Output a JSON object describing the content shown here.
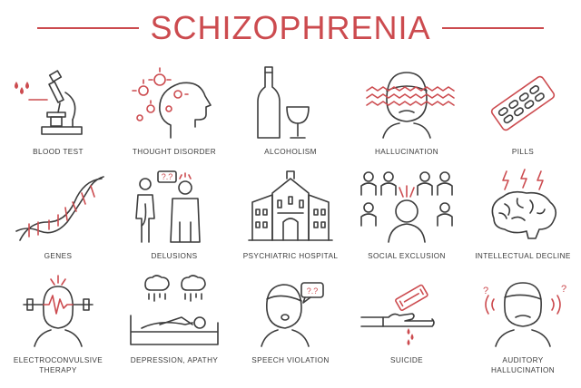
{
  "title": "SCHIZOPHRENIA",
  "colors": {
    "accent": "#cc4b4f",
    "line": "#3c3c3c",
    "background": "#ffffff"
  },
  "items": [
    {
      "icon": "blood-test-icon",
      "label": "BLOOD TEST"
    },
    {
      "icon": "thought-disorder-icon",
      "label": "THOUGHT DISORDER"
    },
    {
      "icon": "alcoholism-icon",
      "label": "ALCOHOLISM"
    },
    {
      "icon": "hallucination-icon",
      "label": "HALLUCINATION"
    },
    {
      "icon": "pills-icon",
      "label": "PILLS"
    },
    {
      "icon": "genes-icon",
      "label": "GENES"
    },
    {
      "icon": "delusions-icon",
      "label": "DELUSIONS",
      "bubble_text": "?.?"
    },
    {
      "icon": "psychiatric-hospital-icon",
      "label": "PSYCHIATRIC HOSPITAL"
    },
    {
      "icon": "social-exclusion-icon",
      "label": "SOCIAL EXCLUSION"
    },
    {
      "icon": "intellectual-decline-icon",
      "label": "INTELLECTUAL DECLINE"
    },
    {
      "icon": "electroconvulsive-therapy-icon",
      "label_line1": "ELECTROCONVULSIVE",
      "label_line2": "THERAPY"
    },
    {
      "icon": "depression-apathy-icon",
      "label": "DEPRESSION, APATHY"
    },
    {
      "icon": "speech-violation-icon",
      "label": "SPEECH VIOLATION",
      "bubble_text": "?.?"
    },
    {
      "icon": "suicide-icon",
      "label": "SUICIDE"
    },
    {
      "icon": "auditory-hallucination-icon",
      "label_line1": "AUDITORY",
      "label_line2": "HALLUCINATION",
      "marks_text": "?"
    }
  ]
}
